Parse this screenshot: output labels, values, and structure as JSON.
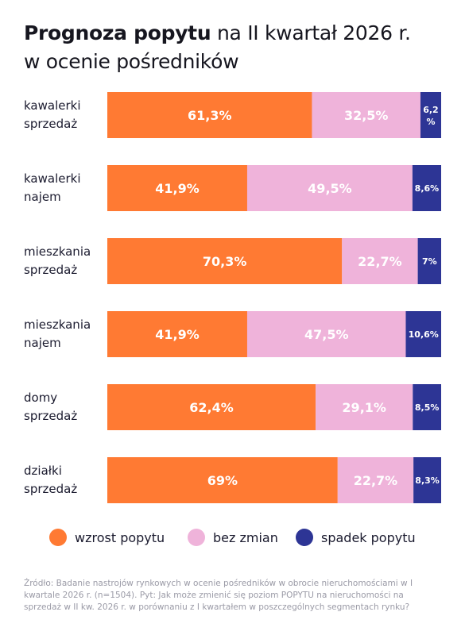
{
  "title": {
    "bold": "Prognoza popytu",
    "rest": " na II kwartał 2026 r.",
    "line2": "w ocenie pośredników"
  },
  "colors": {
    "wzrost": "#ff7a33",
    "bez_zmian": "#efb3da",
    "spadek": "#2d3595"
  },
  "legend": {
    "wzrost": "wzrost popytu",
    "bez_zmian": "bez zmian",
    "spadek": "spadek popytu"
  },
  "source": "Źródło: Badanie nastrojów rynkowych w ocenie  pośredników w obrocie nieruchomościami w I kwartale 2026 r. (n=1504). Pyt: Jak może zmienić się poziom POPYTU na nieruchomości na sprzedaż w II kw. 2026 r. w porównaniu z I kwartałem w poszczególnych segmentach rynku?",
  "chart_data": {
    "type": "bar",
    "orientation": "horizontal",
    "stacked": true,
    "categories": [
      [
        "kawalerki",
        "sprzedaż"
      ],
      [
        "kawalerki",
        "najem"
      ],
      [
        "mieszkania",
        "sprzedaż"
      ],
      [
        "mieszkania",
        "najem"
      ],
      [
        "domy",
        "sprzedaż"
      ],
      [
        "działki",
        "sprzedaż"
      ]
    ],
    "series": [
      {
        "name": "wzrost popytu",
        "values": [
          61.3,
          41.9,
          70.3,
          41.9,
          62.4,
          69
        ],
        "labels": [
          "61,3%",
          "41,9%",
          "70,3%",
          "41,9%",
          "62,4%",
          "69%"
        ]
      },
      {
        "name": "bez zmian",
        "values": [
          32.5,
          49.5,
          22.7,
          47.5,
          29.1,
          22.7
        ],
        "labels": [
          "32,5%",
          "49,5%",
          "22,7%",
          "47,5%",
          "29,1%",
          "22,7%"
        ]
      },
      {
        "name": "spadek popytu",
        "values": [
          6.2,
          8.6,
          7,
          10.6,
          8.5,
          8.3
        ],
        "labels": [
          "6,2\n%",
          "8,6%",
          "7%",
          "10,6%",
          "8,5%",
          "8,3%"
        ]
      }
    ],
    "xlim": [
      0,
      100
    ],
    "grid": false,
    "legend_position": "bottom"
  }
}
